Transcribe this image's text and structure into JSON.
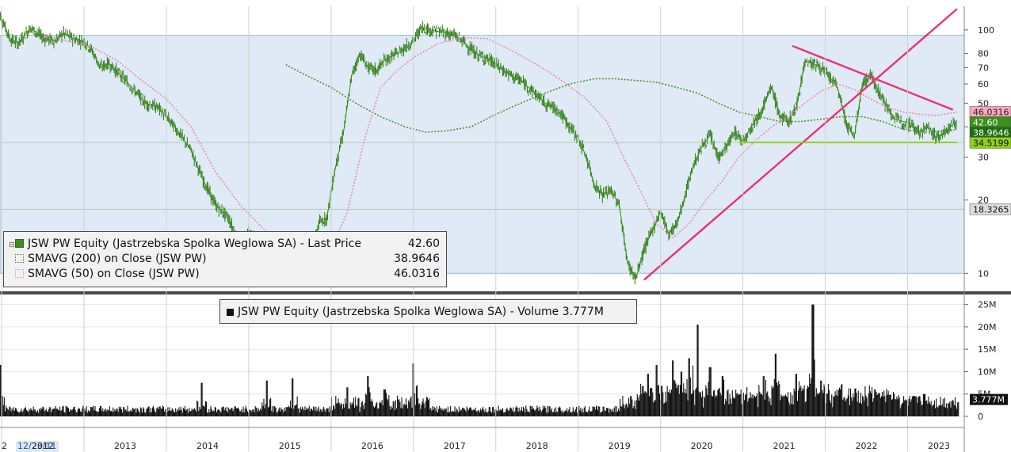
{
  "chart_data": {
    "type": "line",
    "price_panel": {
      "legend": [
        {
          "label": "JSW PW Equity (Jastrzebska Spolka Weglowa SA) - Last Price",
          "value": "42.60",
          "color": "#3b8f1a"
        },
        {
          "label": "SMAVG (200)  on Close (JSW PW)",
          "value": "38.9646",
          "color": "#3b8f1a"
        },
        {
          "label": "SMAVG (50)  on Close (JSW PW)",
          "value": "46.0316",
          "color": "#e88aa6"
        }
      ],
      "y_scale": "log",
      "y_ticks": [
        10,
        20,
        30,
        40,
        50,
        60,
        70,
        80,
        100
      ],
      "ylim": [
        8.5,
        125
      ],
      "shaded_band": [
        10,
        95
      ],
      "reference_lines": [
        18.3265,
        34.5199
      ],
      "right_labels": [
        {
          "text": "46.0316",
          "value": 46.0316,
          "bg": "#f7a8be",
          "fg": "#222222"
        },
        {
          "text": "42.60",
          "value": 42.6,
          "bg": "#3b8f1a",
          "fg": "#ffffff"
        },
        {
          "text": "38.9646",
          "value": 38.9646,
          "bg": "#1e6e10",
          "fg": "#ffffff"
        },
        {
          "text": "34.5199",
          "value": 34.5199,
          "bg": "#8fd01e",
          "fg": "#111111"
        },
        {
          "text": "18.3265",
          "value": 18.3265,
          "bg": "#dddddd",
          "fg": "#111111"
        }
      ],
      "price": {
        "x": [
          2011.95,
          2012.1,
          2012.2,
          2012.35,
          2012.5,
          2012.65,
          2012.75,
          2012.9,
          2013.0,
          2013.1,
          2013.2,
          2013.3,
          2013.45,
          2013.6,
          2013.75,
          2013.9,
          2014.0,
          2014.15,
          2014.3,
          2014.45,
          2014.6,
          2014.75,
          2014.9,
          2015.0,
          2015.1,
          2015.2,
          2015.3,
          2015.45,
          2015.6,
          2015.75,
          2015.85,
          2015.95,
          2016.05,
          2016.15,
          2016.25,
          2016.35,
          2016.45,
          2016.55,
          2016.65,
          2016.8,
          2016.9,
          2017.0,
          2017.1,
          2017.2,
          2017.35,
          2017.5,
          2017.6,
          2017.75,
          2017.9,
          2018.0,
          2018.15,
          2018.3,
          2018.45,
          2018.6,
          2018.75,
          2018.9,
          2019.0,
          2019.1,
          2019.2,
          2019.3,
          2019.4,
          2019.5,
          2019.6,
          2019.7,
          2019.8,
          2019.9,
          2020.0,
          2020.1,
          2020.2,
          2020.3,
          2020.4,
          2020.5,
          2020.6,
          2020.7,
          2020.8,
          2020.9,
          2021.0,
          2021.1,
          2021.2,
          2021.35,
          2021.45,
          2021.55,
          2021.65,
          2021.75,
          2021.85,
          2021.95,
          2022.05,
          2022.15,
          2022.25,
          2022.35,
          2022.45,
          2022.55,
          2022.65,
          2022.75,
          2022.85,
          2022.95,
          2023.05,
          2023.15,
          2023.25,
          2023.35,
          2023.45,
          2023.55,
          2023.6
        ],
        "y": [
          123,
          92,
          88,
          102,
          93,
          90,
          97,
          91,
          90,
          82,
          70,
          73,
          65,
          57,
          50,
          48,
          44,
          38,
          32,
          24,
          19,
          17,
          13,
          15,
          13.5,
          12.5,
          11,
          10.8,
          10,
          12,
          16,
          17,
          27,
          38,
          65,
          80,
          70,
          68,
          75,
          80,
          85,
          90,
          103,
          100,
          98,
          95,
          90,
          80,
          76,
          72,
          66,
          62,
          56,
          50,
          47,
          40,
          36,
          30,
          23,
          21,
          22,
          19,
          11,
          9.5,
          12.5,
          15,
          18,
          14.5,
          16,
          21,
          28,
          33,
          37,
          30,
          33,
          38,
          35,
          40,
          45,
          58,
          44,
          42,
          48,
          74,
          73,
          70,
          64,
          58,
          42,
          36,
          60,
          65,
          56,
          48,
          43,
          42,
          41,
          38,
          40,
          36,
          38,
          41,
          42.6
        ]
      },
      "sma200": {
        "x": [
          2015.45,
          2015.7,
          2016.0,
          2016.3,
          2016.6,
          2016.9,
          2017.15,
          2017.4,
          2017.7,
          2018.0,
          2018.3,
          2018.6,
          2018.9,
          2019.2,
          2019.45,
          2019.7,
          2019.95,
          2020.2,
          2020.45,
          2020.7,
          2020.95,
          2021.2,
          2021.45,
          2021.7,
          2021.95,
          2022.2,
          2022.45,
          2022.7,
          2022.95,
          2023.2,
          2023.45,
          2023.6
        ],
        "y": [
          72,
          65,
          58,
          50,
          44,
          40,
          38,
          38.5,
          40,
          45,
          50,
          55,
          60,
          63,
          63,
          62,
          61,
          58,
          55,
          50,
          46,
          44,
          42,
          42,
          43,
          44,
          44,
          42,
          39,
          38,
          38.5,
          39
        ]
      },
      "sma50": {
        "x": [
          2012.5,
          2012.8,
          2013.1,
          2013.4,
          2013.7,
          2014.0,
          2014.3,
          2014.6,
          2014.9,
          2015.2,
          2015.5,
          2015.75,
          2016.0,
          2016.2,
          2016.4,
          2016.6,
          2016.8,
          2017.0,
          2017.3,
          2017.6,
          2017.9,
          2018.2,
          2018.5,
          2018.8,
          2019.1,
          2019.35,
          2019.55,
          2019.75,
          2019.95,
          2020.15,
          2020.35,
          2020.55,
          2020.75,
          2020.95,
          2021.15,
          2021.35,
          2021.55,
          2021.75,
          2021.95,
          2022.15,
          2022.35,
          2022.55,
          2022.75,
          2022.95,
          2023.15,
          2023.35,
          2023.6
        ],
        "y": [
          93,
          90,
          85,
          75,
          62,
          52,
          40,
          26,
          19,
          15,
          12.5,
          11.5,
          12.5,
          18,
          35,
          58,
          68,
          77,
          88,
          93,
          92,
          82,
          72,
          62,
          52,
          42,
          30,
          22,
          16,
          14,
          16,
          20,
          24,
          30,
          35,
          40,
          44,
          50,
          56,
          60,
          57,
          52,
          48,
          46,
          45,
          44.5,
          46
        ]
      },
      "trendlines": [
        {
          "color": "#e8336e",
          "from": [
            2019.8,
            9.4
          ],
          "to": [
            2023.6,
            122
          ]
        },
        {
          "color": "#e8336e",
          "from": [
            2021.6,
            86
          ],
          "to": [
            2023.55,
            47
          ]
        },
        {
          "color": "#8fd01e",
          "from": [
            2020.95,
            34.5
          ],
          "to": [
            2023.6,
            34.5
          ]
        }
      ]
    },
    "volume_panel": {
      "legend": {
        "label": "JSW PW Equity (Jastrzebska Spolka Weglowa SA) - Volume",
        "value": "3.777M"
      },
      "y_ticks": [
        0,
        5,
        10,
        15,
        20,
        25
      ],
      "y_tick_labels": [
        "0",
        "5M",
        "10M",
        "15M",
        "20M",
        "25M"
      ],
      "ylim": [
        0,
        26
      ],
      "last_value_label": "3.777M",
      "spikes": [
        {
          "x": 2011.98,
          "v": 11.5
        },
        {
          "x": 2014.43,
          "v": 7.5
        },
        {
          "x": 2015.22,
          "v": 8
        },
        {
          "x": 2015.53,
          "v": 8.5
        },
        {
          "x": 2016.2,
          "v": 6.5
        },
        {
          "x": 2016.45,
          "v": 9
        },
        {
          "x": 2016.65,
          "v": 6
        },
        {
          "x": 2017.0,
          "v": 11.8
        },
        {
          "x": 2019.85,
          "v": 9.5
        },
        {
          "x": 2019.95,
          "v": 11.5
        },
        {
          "x": 2020.15,
          "v": 12.5
        },
        {
          "x": 2020.25,
          "v": 10
        },
        {
          "x": 2020.35,
          "v": 13
        },
        {
          "x": 2020.45,
          "v": 20.5
        },
        {
          "x": 2020.6,
          "v": 11
        },
        {
          "x": 2020.75,
          "v": 9
        },
        {
          "x": 2021.25,
          "v": 9
        },
        {
          "x": 2021.4,
          "v": 14
        },
        {
          "x": 2021.65,
          "v": 9.5
        },
        {
          "x": 2021.85,
          "v": 25
        },
        {
          "x": 2021.95,
          "v": 8
        },
        {
          "x": 2022.2,
          "v": 7
        },
        {
          "x": 2022.6,
          "v": 6
        },
        {
          "x": 2023.2,
          "v": 5
        }
      ],
      "last_volume": 3.777
    },
    "x_axis": {
      "labels": [
        "2",
        "12/23/11",
        "2012",
        "2013",
        "2014",
        "2015",
        "2016",
        "2017",
        "2018",
        "2019",
        "2020",
        "2021",
        "2022",
        "2023"
      ],
      "years": [
        2012,
        2013,
        2014,
        2015,
        2016,
        2017,
        2018,
        2019,
        2020,
        2021,
        2022,
        2023
      ],
      "start_date_label": "12/23/11"
    }
  }
}
